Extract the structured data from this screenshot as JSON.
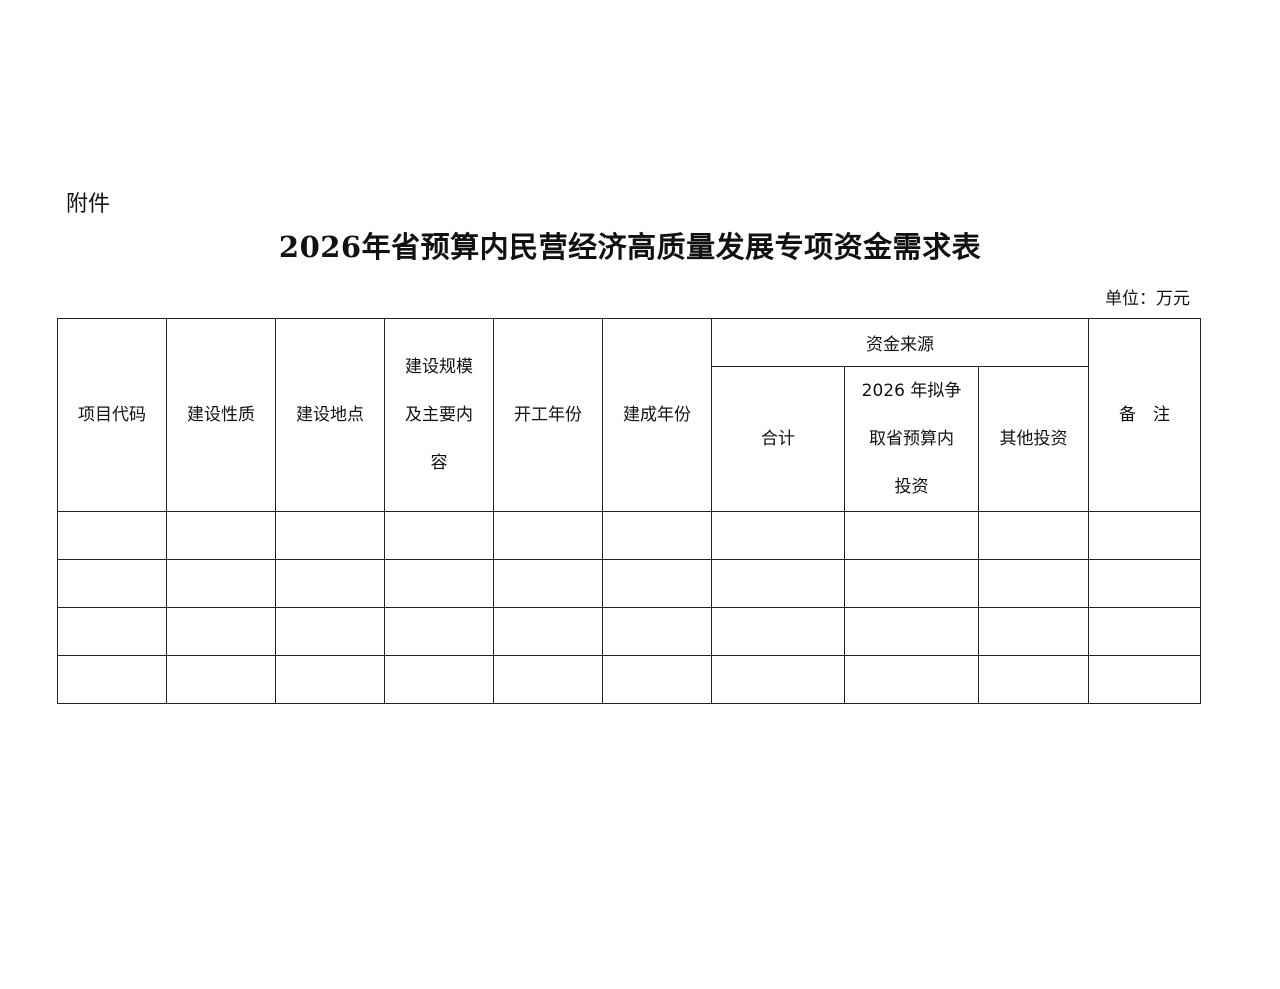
{
  "attachment_label": "附件",
  "title": "2026年省预算内民营经济高质量发展专项资金需求表",
  "unit": "单位：万元",
  "table": {
    "headers": {
      "project_code": [
        "项目代码"
      ],
      "construction_nature": [
        "建设性质"
      ],
      "construction_site": [
        "建设地点"
      ],
      "scale_content": [
        "建设规模",
        "及主要内",
        "容"
      ],
      "start_year": [
        "开工年份"
      ],
      "completion_year": [
        "建成年份"
      ],
      "funding_source": "资金来源",
      "total": [
        "合计"
      ],
      "provincial_budget": [
        "2026 年拟争",
        "取省预算内",
        "投资"
      ],
      "other_investment": [
        "其他投资"
      ],
      "remarks": [
        "备　注"
      ]
    },
    "rows": [
      [
        "",
        "",
        "",
        "",
        "",
        "",
        "",
        "",
        "",
        ""
      ],
      [
        "",
        "",
        "",
        "",
        "",
        "",
        "",
        "",
        "",
        ""
      ],
      [
        "",
        "",
        "",
        "",
        "",
        "",
        "",
        "",
        "",
        ""
      ],
      [
        "",
        "",
        "",
        "",
        "",
        "",
        "",
        "",
        "",
        ""
      ]
    ]
  }
}
